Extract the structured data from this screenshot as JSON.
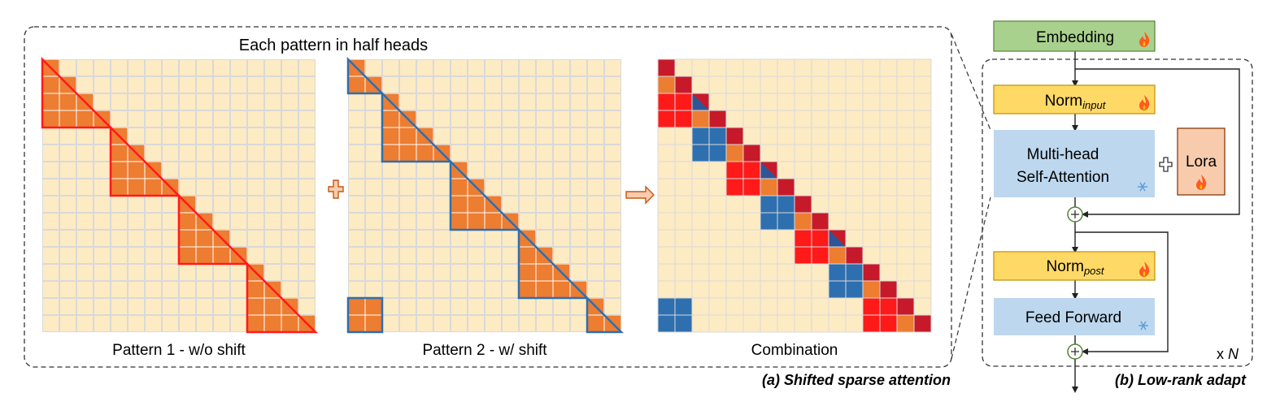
{
  "panel_a": {
    "heading": "Each pattern in half heads",
    "caption": "(a) Shifted sparse attention",
    "patterns": [
      {
        "label": "Pattern 1 - w/o shift"
      },
      {
        "label": "Pattern 2 - w/ shift"
      },
      {
        "label": "Combination"
      }
    ],
    "grid": {
      "size": 16,
      "group": 4,
      "shift": 2
    },
    "operators": {
      "plus": "plus-icon",
      "arrow": "right-arrow-icon"
    }
  },
  "panel_b": {
    "caption": "(b) Low-rank adapt",
    "embedding": "Embedding",
    "norm_input": {
      "base": "Norm",
      "sub": "input"
    },
    "attention_line1": "Multi-head",
    "attention_line2": "Self-Attention",
    "lora": "Lora",
    "norm_post": {
      "base": "Norm",
      "sub": "post"
    },
    "feed_forward": "Feed Forward",
    "repeat": {
      "prefix": "x ",
      "var": "N"
    },
    "trainable_icon": "flame-icon",
    "frozen_icon": "snowflake-icon",
    "residual_icon": "circled-plus-icon"
  },
  "colors": {
    "cell": "#fdebc4",
    "grid_line": "#d9d9d9",
    "attend": "#ed7d31",
    "red": "#ff1a1a",
    "dark_red": "#c61a2a",
    "blue": "#2e6fb0",
    "dark_blue": "#2f5597",
    "embedding": "#a9d18e",
    "norm": "#ffd966",
    "attention": "#bdd7ee",
    "lora": "#f4b183",
    "flame": "#ff5a1f",
    "snow": "#5b9bd5"
  }
}
